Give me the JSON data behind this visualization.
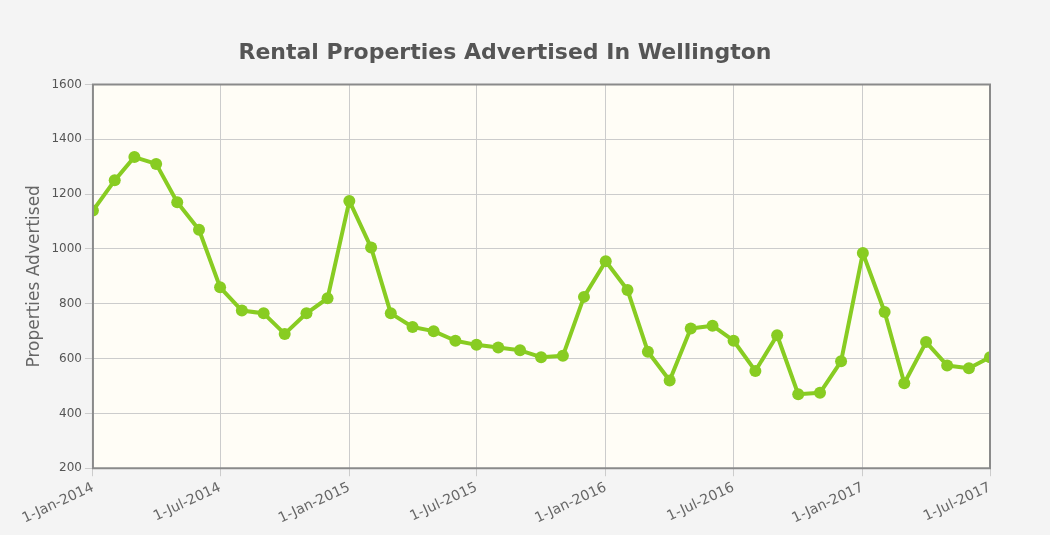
{
  "chart_data": {
    "type": "line",
    "title": "Rental Properties Advertised In Wellington",
    "ylabel": "Properties Advertised",
    "x": [
      "2014-01",
      "2014-02",
      "2014-03",
      "2014-04",
      "2014-05",
      "2014-06",
      "2014-07",
      "2014-08",
      "2014-09",
      "2014-10",
      "2014-11",
      "2014-12",
      "2015-01",
      "2015-02",
      "2015-03",
      "2015-04",
      "2015-05",
      "2015-06",
      "2015-07",
      "2015-08",
      "2015-09",
      "2015-10",
      "2015-11",
      "2015-12",
      "2016-01",
      "2016-02",
      "2016-03",
      "2016-04",
      "2016-05",
      "2016-06",
      "2016-07",
      "2016-08",
      "2016-09",
      "2016-10",
      "2016-11",
      "2016-12",
      "2017-01",
      "2017-02",
      "2017-03",
      "2017-04",
      "2017-05",
      "2017-06",
      "2017-07"
    ],
    "series": [
      {
        "color": "#88cc22",
        "values": [
          1140,
          1250,
          1335,
          1310,
          1170,
          1070,
          860,
          775,
          765,
          690,
          765,
          820,
          1175,
          1005,
          765,
          715,
          700,
          665,
          650,
          640,
          630,
          605,
          610,
          825,
          955,
          850,
          625,
          520,
          710,
          720,
          665,
          555,
          685,
          470,
          475,
          590,
          985,
          770,
          510,
          660,
          575,
          565,
          605
        ]
      }
    ],
    "xlim": [
      "2014-01-01",
      "2017-07-01"
    ],
    "xticks": [
      {
        "value": "2014-01-01",
        "label": "1-Jan-2014"
      },
      {
        "value": "2014-07-01",
        "label": "1-Jul-2014"
      },
      {
        "value": "2015-01-01",
        "label": "1-Jan-2015"
      },
      {
        "value": "2015-07-01",
        "label": "1-Jul-2015"
      },
      {
        "value": "2016-01-01",
        "label": "1-Jan-2016"
      },
      {
        "value": "2016-07-01",
        "label": "1-Jul-2016"
      },
      {
        "value": "2017-01-01",
        "label": "1-Jan-2017"
      },
      {
        "value": "2017-07-01",
        "label": "1-Jul-2017"
      }
    ],
    "ylim": [
      200,
      1600
    ],
    "yticks": [
      200,
      400,
      600,
      800,
      1000,
      1200,
      1400,
      1600
    ],
    "grid": true,
    "legend": false,
    "marker": "circle",
    "line_style": "solid"
  }
}
